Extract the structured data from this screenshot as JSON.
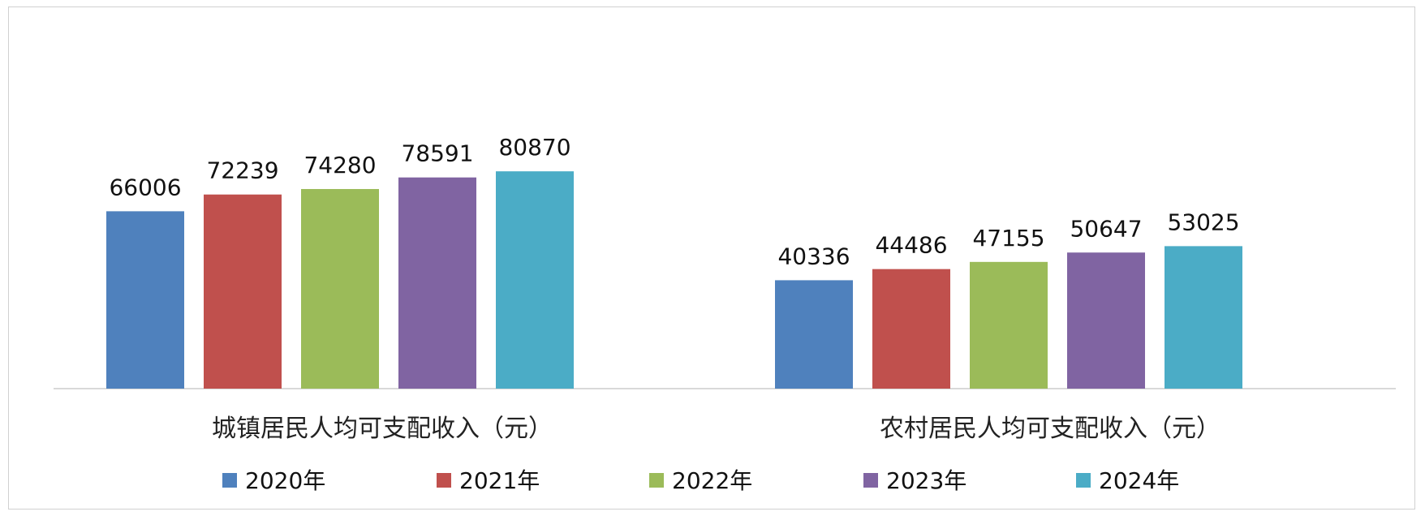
{
  "chart_data": {
    "type": "bar",
    "categories": [
      "城镇居民人均可支配收入（元）",
      "农村居民人均可支配收入（元）"
    ],
    "series": [
      {
        "name": "2020年",
        "color": "#4f81bd",
        "values": [
          66006,
          40336
        ]
      },
      {
        "name": "2021年",
        "color": "#c0504d",
        "values": [
          72239,
          44486
        ]
      },
      {
        "name": "2022年",
        "color": "#9bbb59",
        "values": [
          74280,
          47155
        ]
      },
      {
        "name": "2023年",
        "color": "#8064a2",
        "values": [
          78591,
          50647
        ]
      },
      {
        "name": "2024年",
        "color": "#4bacc6",
        "values": [
          80870,
          53025
        ]
      }
    ],
    "data_labels": true,
    "grid": false,
    "legend_position": "bottom",
    "ylim": [
      0,
      100000
    ]
  }
}
